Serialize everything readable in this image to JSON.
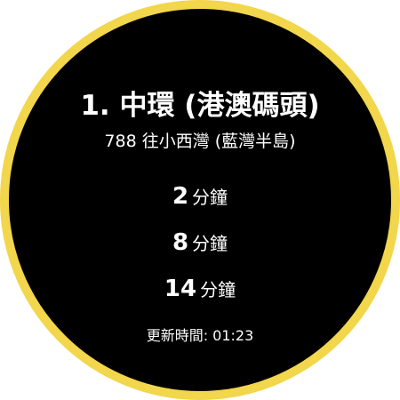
{
  "stop": {
    "title": "1. 中環 (港澳碼頭)"
  },
  "route": {
    "info": "788 往小西灣 (藍灣半島)"
  },
  "etas": [
    {
      "value": "2",
      "unit": "分鐘"
    },
    {
      "value": "8",
      "unit": "分鐘"
    },
    {
      "value": "14",
      "unit": "分鐘"
    }
  ],
  "updated": {
    "text": "更新時間: 01:23"
  },
  "colors": {
    "ring": "#f2d64b",
    "background": "#000000",
    "text": "#ffffff"
  }
}
